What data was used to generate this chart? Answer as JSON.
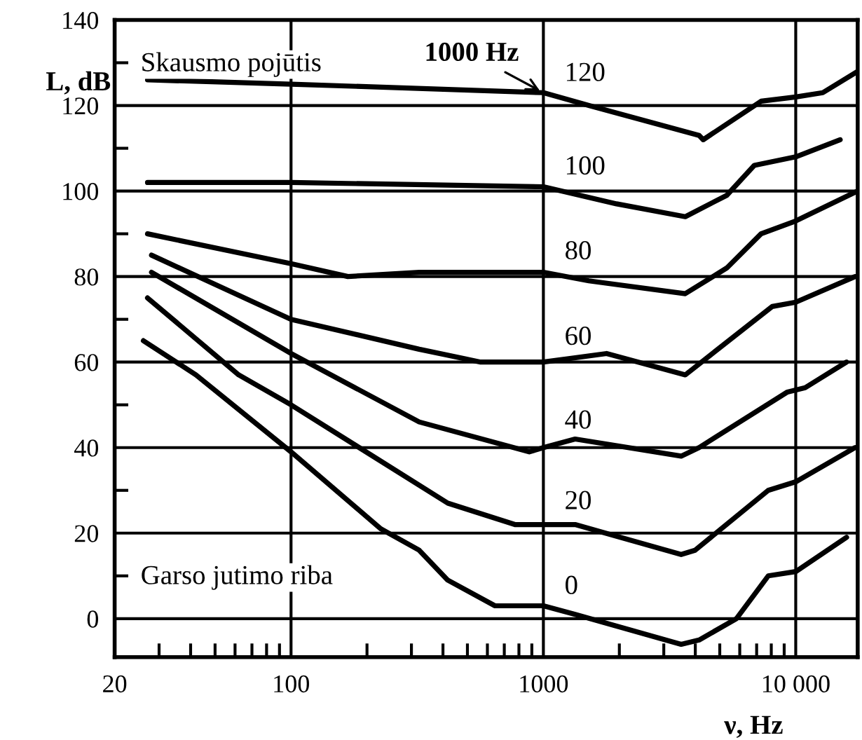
{
  "chart_data": {
    "type": "line",
    "xlabel": "ν, Hz",
    "ylabel": "L, dB",
    "log": "x",
    "xlim": [
      20,
      17600
    ],
    "ylim": [
      -9,
      140
    ],
    "xticks": [
      20,
      100,
      1000,
      {
        "value": 10000,
        "label": "10 000"
      },
      {
        "value": 30,
        "label": null
      },
      {
        "value": 40,
        "label": null
      },
      {
        "value": 50,
        "label": null
      },
      {
        "value": 60,
        "label": null
      },
      {
        "value": 70,
        "label": null
      },
      {
        "value": 80,
        "label": null
      },
      {
        "value": 90,
        "label": null
      },
      {
        "value": 200,
        "label": null
      },
      {
        "value": 300,
        "label": null
      },
      {
        "value": 400,
        "label": null
      },
      {
        "value": 500,
        "label": null
      },
      {
        "value": 600,
        "label": null
      },
      {
        "value": 700,
        "label": null
      },
      {
        "value": 800,
        "label": null
      },
      {
        "value": 900,
        "label": null
      },
      {
        "value": 2000,
        "label": null
      },
      {
        "value": 3000,
        "label": null
      },
      {
        "value": 4000,
        "label": null
      },
      {
        "value": 5000,
        "label": null
      },
      {
        "value": 6000,
        "label": null
      },
      {
        "value": 7000,
        "label": null
      },
      {
        "value": 8000,
        "label": null
      },
      {
        "value": 9000,
        "label": null
      }
    ],
    "yticks": [
      0,
      20,
      40,
      60,
      80,
      100,
      120,
      140,
      {
        "value": 10,
        "label": null
      },
      {
        "value": 30,
        "label": null
      },
      {
        "value": 50,
        "label": null
      },
      {
        "value": 70,
        "label": null
      },
      {
        "value": 90,
        "label": null
      },
      {
        "value": 110,
        "label": null
      },
      {
        "value": 130,
        "label": null
      }
    ],
    "grid": true,
    "marker": "none",
    "line_style": "solid",
    "series": [
      {
        "name": "120",
        "color": "#000000",
        "x": [
          27,
          100,
          1000,
          1514,
          4140,
          4300,
          7290,
          10000,
          12800,
          17600
        ],
        "values": [
          126,
          125,
          123,
          120,
          113,
          112,
          121,
          122,
          123,
          128
        ]
      },
      {
        "name": "100",
        "color": "#000000",
        "x": [
          27,
          100,
          1000,
          1950,
          3650,
          5330,
          6850,
          10000,
          15000
        ],
        "values": [
          102,
          102,
          101,
          97,
          94,
          99,
          106,
          108,
          112
        ]
      },
      {
        "name": "80",
        "color": "#000000",
        "x": [
          27,
          100,
          168,
          322,
          1000,
          1514,
          3650,
          5330,
          7290,
          10000,
          17600
        ],
        "values": [
          90,
          83,
          80,
          81,
          81,
          79,
          76,
          82,
          90,
          93,
          100
        ]
      },
      {
        "name": "60",
        "color": "#000000",
        "x": [
          28,
          100,
          322,
          564,
          1000,
          1780,
          3650,
          8070,
          10000,
          17200
        ],
        "values": [
          85,
          70,
          63,
          60,
          60,
          62,
          57,
          73,
          74,
          80
        ]
      },
      {
        "name": "40",
        "color": "#000000",
        "x": [
          28,
          100,
          322,
          879,
          1000,
          1336,
          3515,
          4140,
          9270,
          10900,
          15900
        ],
        "values": [
          81,
          62,
          46,
          39,
          40,
          42,
          38,
          40,
          53,
          54,
          60
        ]
      },
      {
        "name": "20",
        "color": "#000000",
        "x": [
          27,
          62,
          100,
          418,
          771,
          1000,
          1336,
          3515,
          3990,
          7780,
          10000,
          17200
        ],
        "values": [
          75,
          57,
          50,
          27,
          22,
          22,
          22,
          15,
          16,
          30,
          32,
          40
        ]
      },
      {
        "name": "0",
        "color": "#000000",
        "x": [
          26,
          42,
          100,
          227,
          322,
          418,
          643,
          1000,
          1336,
          3515,
          4140,
          5820,
          7780,
          10000,
          15900
        ],
        "values": [
          65,
          57,
          39,
          21,
          16,
          9,
          3,
          3,
          1,
          -6,
          -5,
          0,
          10,
          11,
          19
        ]
      }
    ],
    "annotations": [
      {
        "text": "1000 Hz",
        "x": 1000,
        "y": 123
      },
      "Skausmo pojūtis",
      "Garso jutimo riba"
    ]
  }
}
